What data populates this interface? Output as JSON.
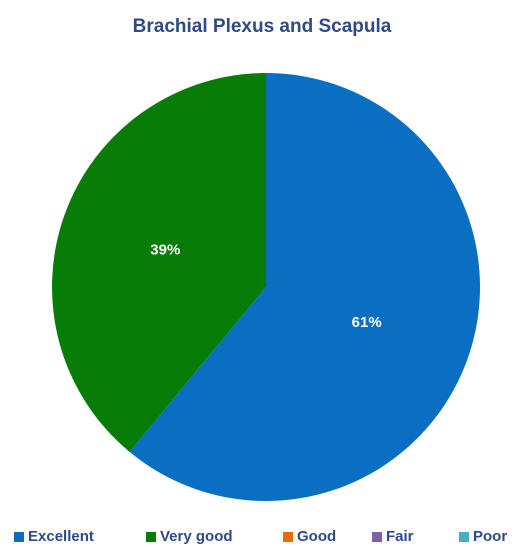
{
  "chart_data": {
    "type": "pie",
    "title": "Brachial Plexus and Scapula",
    "categories": [
      "Excellent",
      "Very good",
      "Good",
      "Fair",
      "Poor"
    ],
    "values": [
      61,
      39,
      0,
      0,
      0
    ],
    "value_labels": [
      "61%",
      "39%",
      null,
      null,
      null
    ],
    "colors": [
      "#0a6fc2",
      "#077d07",
      "#e46c0a",
      "#7f5fa8",
      "#4bacc6"
    ],
    "legend": "bottom"
  }
}
